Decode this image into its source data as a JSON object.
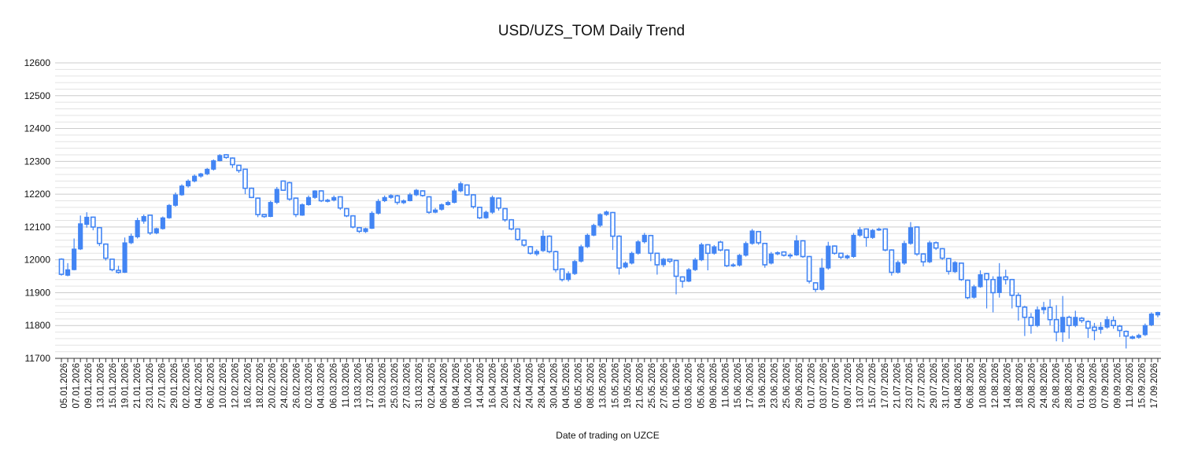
{
  "chart_data": {
    "type": "candlestick",
    "title": "USD/UZS_TOM Daily Trend",
    "xlabel": "Date of trading on UZCE",
    "ylabel": "",
    "ylim": [
      11700,
      12600
    ],
    "yticks": [
      11700,
      11800,
      11900,
      12000,
      12100,
      12200,
      12300,
      12400,
      12500,
      12600
    ],
    "minor_grid_step": 20,
    "grid": true,
    "rising_style": "filled",
    "falling_style": "hollow",
    "color": "#4285f4",
    "x_tick_labels": [
      "05.01.2026",
      "07.01.2026",
      "09.01.2026",
      "13.01.2026",
      "15.01.2026",
      "19.01.2026",
      "21.01.2026",
      "23.01.2026",
      "27.01.2026",
      "29.01.2026",
      "02.02.2026",
      "04.02.2026",
      "06.02.2026",
      "10.02.2026",
      "12.02.2026",
      "16.02.2026",
      "18.02.2026",
      "20.02.2026",
      "24.02.2026",
      "26.02.2026",
      "02.03.2026",
      "04.03.2026",
      "06.03.2026",
      "11.03.2026",
      "13.03.2026",
      "17.03.2026",
      "19.03.2026",
      "25.03.2026",
      "27.03.2026",
      "31.03.2026",
      "02.04.2026",
      "06.04.2026",
      "08.04.2026",
      "10.04.2026",
      "14.04.2026",
      "16.04.2026",
      "20.04.2026",
      "22.04.2026",
      "24.04.2026",
      "28.04.2026",
      "30.04.2026",
      "04.05.2026",
      "06.05.2026",
      "08.05.2026",
      "13.05.2026",
      "15.05.2026",
      "19.05.2026",
      "21.05.2026",
      "25.05.2026",
      "27.05.2026",
      "01.06.2026",
      "03.06.2026",
      "05.06.2026",
      "09.06.2026",
      "11.06.2026",
      "15.06.2026",
      "17.06.2026",
      "19.06.2026",
      "23.06.2026",
      "25.06.2026",
      "29.06.2026",
      "01.07.2026",
      "03.07.2026",
      "07.07.2026",
      "09.07.2026",
      "13.07.2026",
      "15.07.2026",
      "17.07.2026",
      "21.07.2026",
      "23.07.2026",
      "27.07.2026",
      "29.07.2026",
      "31.07.2026",
      "04.08.2026",
      "06.08.2026",
      "10.08.2026",
      "12.08.2026",
      "14.08.2026",
      "18.08.2026",
      "20.08.2026",
      "24.08.2026",
      "26.08.2026",
      "28.08.2026",
      "01.09.2026",
      "03.09.2026",
      "07.09.2026",
      "09.09.2026",
      "11.09.2026",
      "15.09.2026",
      "17.09.2026"
    ],
    "candles": [
      {
        "o": 12002,
        "c": 11956,
        "h": 12005,
        "l": 11952
      },
      {
        "o": 11953,
        "c": 11970,
        "h": 11990,
        "l": 11950
      },
      {
        "o": 11970,
        "c": 12033,
        "h": 12065,
        "l": 11968
      },
      {
        "o": 12033,
        "c": 12110,
        "h": 12135,
        "l": 12030
      },
      {
        "o": 12108,
        "c": 12130,
        "h": 12145,
        "l": 12098
      },
      {
        "o": 12130,
        "c": 12100,
        "h": 12132,
        "l": 12090
      },
      {
        "o": 12098,
        "c": 12050,
        "h": 12100,
        "l": 12042
      },
      {
        "o": 12048,
        "c": 12005,
        "h": 12050,
        "l": 11998
      },
      {
        "o": 12002,
        "c": 11970,
        "h": 12004,
        "l": 11965
      },
      {
        "o": 11968,
        "c": 11962,
        "h": 11982,
        "l": 11958
      },
      {
        "o": 11962,
        "c": 12052,
        "h": 12068,
        "l": 11960
      },
      {
        "o": 12052,
        "c": 12072,
        "h": 12080,
        "l": 12048
      },
      {
        "o": 12070,
        "c": 12120,
        "h": 12128,
        "l": 12065
      },
      {
        "o": 12118,
        "c": 12132,
        "h": 12138,
        "l": 12110
      },
      {
        "o": 12136,
        "c": 12082,
        "h": 12138,
        "l": 12076
      },
      {
        "o": 12082,
        "c": 12095,
        "h": 12098,
        "l": 12078
      },
      {
        "o": 12095,
        "c": 12128,
        "h": 12132,
        "l": 12092
      },
      {
        "o": 12128,
        "c": 12166,
        "h": 12170,
        "l": 12125
      },
      {
        "o": 12166,
        "c": 12198,
        "h": 12205,
        "l": 12162
      },
      {
        "o": 12198,
        "c": 12225,
        "h": 12230,
        "l": 12195
      },
      {
        "o": 12225,
        "c": 12240,
        "h": 12245,
        "l": 12220
      },
      {
        "o": 12240,
        "c": 12255,
        "h": 12260,
        "l": 12236
      },
      {
        "o": 12255,
        "c": 12262,
        "h": 12265,
        "l": 12250
      },
      {
        "o": 12262,
        "c": 12276,
        "h": 12280,
        "l": 12258
      },
      {
        "o": 12276,
        "c": 12302,
        "h": 12306,
        "l": 12272
      },
      {
        "o": 12302,
        "c": 12318,
        "h": 12322,
        "l": 12300
      },
      {
        "o": 12320,
        "c": 12312,
        "h": 12322,
        "l": 12308
      },
      {
        "o": 12310,
        "c": 12290,
        "h": 12312,
        "l": 12280
      },
      {
        "o": 12288,
        "c": 12272,
        "h": 12290,
        "l": 12265
      },
      {
        "o": 12276,
        "c": 12218,
        "h": 12278,
        "l": 12200
      },
      {
        "o": 12218,
        "c": 12190,
        "h": 12220,
        "l": 12188
      },
      {
        "o": 12188,
        "c": 12138,
        "h": 12190,
        "l": 12130
      },
      {
        "o": 12138,
        "c": 12132,
        "h": 12140,
        "l": 12128
      },
      {
        "o": 12132,
        "c": 12175,
        "h": 12180,
        "l": 12130
      },
      {
        "o": 12175,
        "c": 12215,
        "h": 12222,
        "l": 12170
      },
      {
        "o": 12240,
        "c": 12212,
        "h": 12242,
        "l": 12210
      },
      {
        "o": 12235,
        "c": 12185,
        "h": 12238,
        "l": 12180
      },
      {
        "o": 12188,
        "c": 12138,
        "h": 12190,
        "l": 12130
      },
      {
        "o": 12136,
        "c": 12168,
        "h": 12172,
        "l": 12134
      },
      {
        "o": 12168,
        "c": 12190,
        "h": 12196,
        "l": 12165
      },
      {
        "o": 12190,
        "c": 12210,
        "h": 12212,
        "l": 12186
      },
      {
        "o": 12210,
        "c": 12180,
        "h": 12212,
        "l": 12176
      },
      {
        "o": 12178,
        "c": 12182,
        "h": 12186,
        "l": 12175
      },
      {
        "o": 12182,
        "c": 12190,
        "h": 12196,
        "l": 12178
      },
      {
        "o": 12192,
        "c": 12158,
        "h": 12194,
        "l": 12152
      },
      {
        "o": 12156,
        "c": 12134,
        "h": 12158,
        "l": 12130
      },
      {
        "o": 12134,
        "c": 12100,
        "h": 12136,
        "l": 12096
      },
      {
        "o": 12098,
        "c": 12087,
        "h": 12100,
        "l": 12082
      },
      {
        "o": 12086,
        "c": 12095,
        "h": 12098,
        "l": 12082
      },
      {
        "o": 12096,
        "c": 12142,
        "h": 12148,
        "l": 12094
      },
      {
        "o": 12142,
        "c": 12178,
        "h": 12185,
        "l": 12138
      },
      {
        "o": 12180,
        "c": 12190,
        "h": 12196,
        "l": 12176
      },
      {
        "o": 12190,
        "c": 12196,
        "h": 12200,
        "l": 12186
      },
      {
        "o": 12195,
        "c": 12175,
        "h": 12198,
        "l": 12168
      },
      {
        "o": 12174,
        "c": 12180,
        "h": 12184,
        "l": 12170
      },
      {
        "o": 12180,
        "c": 12198,
        "h": 12204,
        "l": 12178
      },
      {
        "o": 12198,
        "c": 12212,
        "h": 12216,
        "l": 12194
      },
      {
        "o": 12210,
        "c": 12196,
        "h": 12212,
        "l": 12192
      },
      {
        "o": 12192,
        "c": 12145,
        "h": 12194,
        "l": 12140
      },
      {
        "o": 12145,
        "c": 12152,
        "h": 12158,
        "l": 12142
      },
      {
        "o": 12154,
        "c": 12168,
        "h": 12172,
        "l": 12150
      },
      {
        "o": 12168,
        "c": 12175,
        "h": 12180,
        "l": 12165
      },
      {
        "o": 12175,
        "c": 12210,
        "h": 12216,
        "l": 12172
      },
      {
        "o": 12210,
        "c": 12232,
        "h": 12238,
        "l": 12206
      },
      {
        "o": 12228,
        "c": 12198,
        "h": 12230,
        "l": 12195
      },
      {
        "o": 12198,
        "c": 12162,
        "h": 12200,
        "l": 12156
      },
      {
        "o": 12160,
        "c": 12128,
        "h": 12162,
        "l": 12124
      },
      {
        "o": 12128,
        "c": 12145,
        "h": 12150,
        "l": 12125
      },
      {
        "o": 12145,
        "c": 12190,
        "h": 12196,
        "l": 12140
      },
      {
        "o": 12188,
        "c": 12158,
        "h": 12190,
        "l": 12150
      },
      {
        "o": 12156,
        "c": 12122,
        "h": 12158,
        "l": 12116
      },
      {
        "o": 12122,
        "c": 12094,
        "h": 12124,
        "l": 12090
      },
      {
        "o": 12094,
        "c": 12062,
        "h": 12096,
        "l": 12058
      },
      {
        "o": 12060,
        "c": 12045,
        "h": 12062,
        "l": 12040
      },
      {
        "o": 12040,
        "c": 12020,
        "h": 12042,
        "l": 12016
      },
      {
        "o": 12018,
        "c": 12026,
        "h": 12032,
        "l": 12012
      },
      {
        "o": 12028,
        "c": 12072,
        "h": 12090,
        "l": 12024
      },
      {
        "o": 12072,
        "c": 12025,
        "h": 12075,
        "l": 12020
      },
      {
        "o": 12025,
        "c": 11970,
        "h": 12028,
        "l": 11962
      },
      {
        "o": 11972,
        "c": 11940,
        "h": 11974,
        "l": 11934
      },
      {
        "o": 11940,
        "c": 11958,
        "h": 11965,
        "l": 11934
      },
      {
        "o": 11958,
        "c": 11995,
        "h": 12000,
        "l": 11954
      },
      {
        "o": 11996,
        "c": 12040,
        "h": 12046,
        "l": 11992
      },
      {
        "o": 12040,
        "c": 12075,
        "h": 12080,
        "l": 12036
      },
      {
        "o": 12075,
        "c": 12105,
        "h": 12110,
        "l": 12072
      },
      {
        "o": 12105,
        "c": 12138,
        "h": 12142,
        "l": 12100
      },
      {
        "o": 12138,
        "c": 12146,
        "h": 12150,
        "l": 12134
      },
      {
        "o": 12144,
        "c": 12072,
        "h": 12146,
        "l": 12030
      },
      {
        "o": 12072,
        "c": 11975,
        "h": 12075,
        "l": 11955
      },
      {
        "o": 11978,
        "c": 11990,
        "h": 11995,
        "l": 11974
      },
      {
        "o": 11990,
        "c": 12020,
        "h": 12025,
        "l": 11986
      },
      {
        "o": 12020,
        "c": 12055,
        "h": 12060,
        "l": 12016
      },
      {
        "o": 12055,
        "c": 12075,
        "h": 12082,
        "l": 12050
      },
      {
        "o": 12074,
        "c": 12020,
        "h": 12076,
        "l": 11996
      },
      {
        "o": 12020,
        "c": 11985,
        "h": 12022,
        "l": 11955
      },
      {
        "o": 11985,
        "c": 12002,
        "h": 12006,
        "l": 11978
      },
      {
        "o": 12002,
        "c": 11996,
        "h": 12004,
        "l": 11990
      },
      {
        "o": 11998,
        "c": 11950,
        "h": 12000,
        "l": 11895
      },
      {
        "o": 11948,
        "c": 11935,
        "h": 11950,
        "l": 11915
      },
      {
        "o": 11935,
        "c": 11970,
        "h": 11975,
        "l": 11932
      },
      {
        "o": 11970,
        "c": 12000,
        "h": 12006,
        "l": 11966
      },
      {
        "o": 12000,
        "c": 12046,
        "h": 12052,
        "l": 11996
      },
      {
        "o": 12046,
        "c": 12020,
        "h": 12048,
        "l": 11968
      },
      {
        "o": 12020,
        "c": 12040,
        "h": 12045,
        "l": 12016
      },
      {
        "o": 12054,
        "c": 12030,
        "h": 12058,
        "l": 12026
      },
      {
        "o": 12030,
        "c": 11982,
        "h": 12032,
        "l": 11978
      },
      {
        "o": 11982,
        "c": 11985,
        "h": 11990,
        "l": 11978
      },
      {
        "o": 11984,
        "c": 12014,
        "h": 12018,
        "l": 11980
      },
      {
        "o": 12014,
        "c": 12050,
        "h": 12056,
        "l": 12010
      },
      {
        "o": 12050,
        "c": 12088,
        "h": 12094,
        "l": 12046
      },
      {
        "o": 12086,
        "c": 12052,
        "h": 12088,
        "l": 12046
      },
      {
        "o": 12050,
        "c": 11985,
        "h": 12052,
        "l": 11976
      },
      {
        "o": 11990,
        "c": 12018,
        "h": 12024,
        "l": 11986
      },
      {
        "o": 12018,
        "c": 12022,
        "h": 12026,
        "l": 12014
      },
      {
        "o": 12024,
        "c": 12014,
        "h": 12026,
        "l": 12010
      },
      {
        "o": 12012,
        "c": 12015,
        "h": 12020,
        "l": 12004
      },
      {
        "o": 12015,
        "c": 12058,
        "h": 12075,
        "l": 12012
      },
      {
        "o": 12058,
        "c": 12010,
        "h": 12060,
        "l": 12006
      },
      {
        "o": 12010,
        "c": 11935,
        "h": 12012,
        "l": 11928
      },
      {
        "o": 11930,
        "c": 11910,
        "h": 11932,
        "l": 11902
      },
      {
        "o": 11910,
        "c": 11975,
        "h": 12005,
        "l": 11906
      },
      {
        "o": 11975,
        "c": 12042,
        "h": 12055,
        "l": 11970
      },
      {
        "o": 12042,
        "c": 12020,
        "h": 12044,
        "l": 12016
      },
      {
        "o": 12020,
        "c": 12008,
        "h": 12022,
        "l": 12002
      },
      {
        "o": 12006,
        "c": 12012,
        "h": 12016,
        "l": 12002
      },
      {
        "o": 12010,
        "c": 12075,
        "h": 12082,
        "l": 12006
      },
      {
        "o": 12075,
        "c": 12092,
        "h": 12100,
        "l": 12070
      },
      {
        "o": 12094,
        "c": 12068,
        "h": 12096,
        "l": 12040
      },
      {
        "o": 12068,
        "c": 12090,
        "h": 12094,
        "l": 12064
      },
      {
        "o": 12092,
        "c": 12094,
        "h": 12098,
        "l": 12088
      },
      {
        "o": 12094,
        "c": 12030,
        "h": 12096,
        "l": 12026
      },
      {
        "o": 12030,
        "c": 11962,
        "h": 12032,
        "l": 11952
      },
      {
        "o": 11962,
        "c": 11992,
        "h": 11998,
        "l": 11958
      },
      {
        "o": 11990,
        "c": 12050,
        "h": 12058,
        "l": 11985
      },
      {
        "o": 12050,
        "c": 12098,
        "h": 12115,
        "l": 12046
      },
      {
        "o": 12100,
        "c": 12018,
        "h": 12102,
        "l": 12012
      },
      {
        "o": 12018,
        "c": 11994,
        "h": 12020,
        "l": 11980
      },
      {
        "o": 11994,
        "c": 12052,
        "h": 12058,
        "l": 11990
      },
      {
        "o": 12052,
        "c": 12036,
        "h": 12056,
        "l": 12030
      },
      {
        "o": 12034,
        "c": 12005,
        "h": 12036,
        "l": 12000
      },
      {
        "o": 12004,
        "c": 11965,
        "h": 12006,
        "l": 11955
      },
      {
        "o": 11964,
        "c": 11992,
        "h": 11996,
        "l": 11960
      },
      {
        "o": 11990,
        "c": 11940,
        "h": 11992,
        "l": 11936
      },
      {
        "o": 11938,
        "c": 11885,
        "h": 11940,
        "l": 11880
      },
      {
        "o": 11886,
        "c": 11918,
        "h": 11924,
        "l": 11882
      },
      {
        "o": 11918,
        "c": 11955,
        "h": 11968,
        "l": 11915
      },
      {
        "o": 11958,
        "c": 11940,
        "h": 11960,
        "l": 11852
      },
      {
        "o": 11940,
        "c": 11900,
        "h": 11950,
        "l": 11840
      },
      {
        "o": 11900,
        "c": 11948,
        "h": 11990,
        "l": 11885
      },
      {
        "o": 11948,
        "c": 11940,
        "h": 11970,
        "l": 11925
      },
      {
        "o": 11940,
        "c": 11892,
        "h": 11942,
        "l": 11852
      },
      {
        "o": 11892,
        "c": 11858,
        "h": 11900,
        "l": 11815
      },
      {
        "o": 11856,
        "c": 11825,
        "h": 11860,
        "l": 11768
      },
      {
        "o": 11825,
        "c": 11800,
        "h": 11838,
        "l": 11775
      },
      {
        "o": 11800,
        "c": 11848,
        "h": 11858,
        "l": 11795
      },
      {
        "o": 11848,
        "c": 11855,
        "h": 11872,
        "l": 11835
      },
      {
        "o": 11855,
        "c": 11818,
        "h": 11880,
        "l": 11800
      },
      {
        "o": 11818,
        "c": 11780,
        "h": 11862,
        "l": 11752
      },
      {
        "o": 11780,
        "c": 11825,
        "h": 11890,
        "l": 11750
      },
      {
        "o": 11825,
        "c": 11800,
        "h": 11830,
        "l": 11760
      },
      {
        "o": 11800,
        "c": 11825,
        "h": 11845,
        "l": 11795
      },
      {
        "o": 11822,
        "c": 11815,
        "h": 11826,
        "l": 11808
      },
      {
        "o": 11812,
        "c": 11792,
        "h": 11816,
        "l": 11762
      },
      {
        "o": 11795,
        "c": 11785,
        "h": 11808,
        "l": 11755
      },
      {
        "o": 11788,
        "c": 11795,
        "h": 11810,
        "l": 11775
      },
      {
        "o": 11795,
        "c": 11818,
        "h": 11828,
        "l": 11790
      },
      {
        "o": 11815,
        "c": 11800,
        "h": 11828,
        "l": 11790
      },
      {
        "o": 11798,
        "c": 11785,
        "h": 11802,
        "l": 11765
      },
      {
        "o": 11782,
        "c": 11768,
        "h": 11785,
        "l": 11730
      },
      {
        "o": 11765,
        "c": 11762,
        "h": 11770,
        "l": 11758
      },
      {
        "o": 11764,
        "c": 11770,
        "h": 11775,
        "l": 11760
      },
      {
        "o": 11772,
        "c": 11800,
        "h": 11806,
        "l": 11768
      },
      {
        "o": 11802,
        "c": 11835,
        "h": 11840,
        "l": 11798
      },
      {
        "o": 11832,
        "c": 11840,
        "h": 11842,
        "l": 11825
      }
    ]
  }
}
